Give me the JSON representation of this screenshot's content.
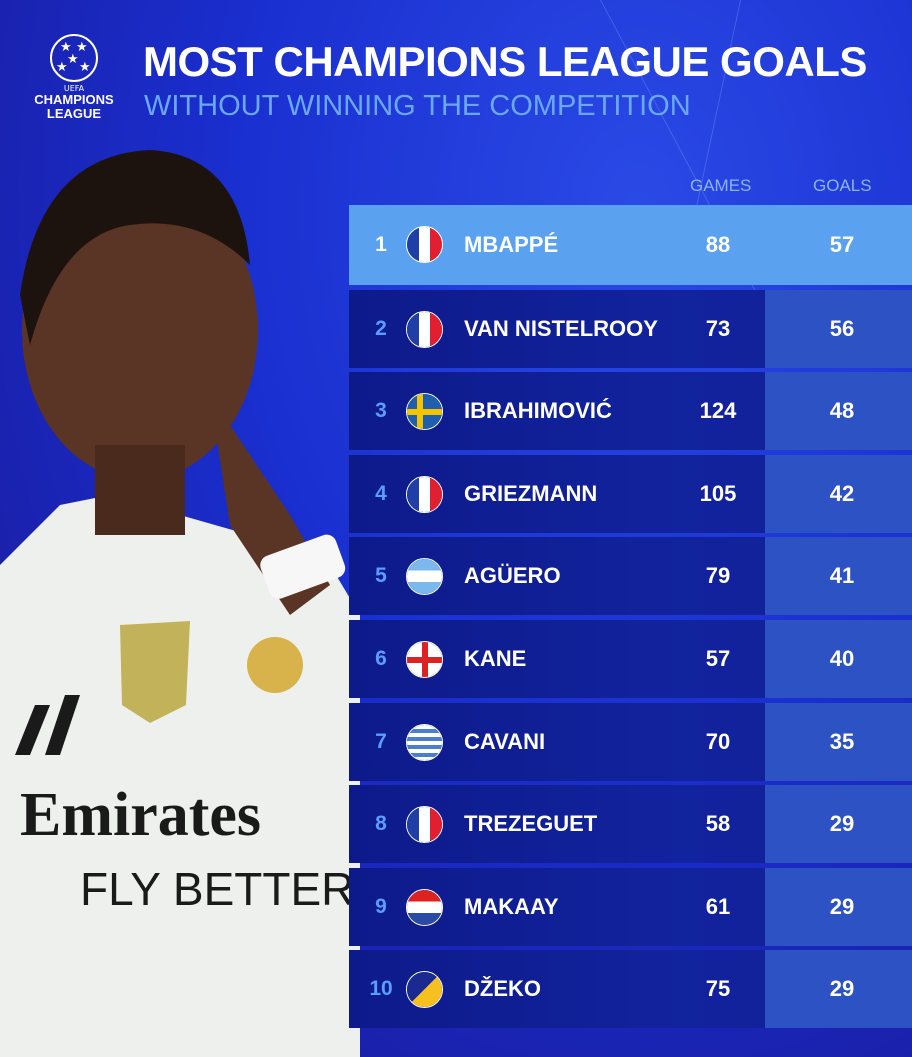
{
  "logo": {
    "uefa": "UEFA",
    "line1": "CHAMPIONS",
    "line2": "LEAGUE"
  },
  "title": "MOST CHAMPIONS LEAGUE GOALS",
  "subtitle": "WITHOUT WINNING THE COMPETITION",
  "columns": {
    "games": "GAMES",
    "goals": "GOALS"
  },
  "colors": {
    "highlight": "#5aa2ef",
    "row": "#12239e",
    "goals_column": "#2d52c4",
    "subtitle": "#6aa8ff"
  },
  "rows": [
    {
      "rank": "1",
      "flag": "france",
      "name": "MBAPPÉ",
      "games": "88",
      "goals": "57"
    },
    {
      "rank": "2",
      "flag": "netherlands-france",
      "name": "VAN NISTELROOY",
      "games": "73",
      "goals": "56"
    },
    {
      "rank": "3",
      "flag": "sweden",
      "name": "IBRAHIMOVIĆ",
      "games": "124",
      "goals": "48"
    },
    {
      "rank": "4",
      "flag": "france",
      "name": "GRIEZMANN",
      "games": "105",
      "goals": "42"
    },
    {
      "rank": "5",
      "flag": "argentina",
      "name": "AGÜERO",
      "games": "79",
      "goals": "41"
    },
    {
      "rank": "6",
      "flag": "england",
      "name": "KANE",
      "games": "57",
      "goals": "40"
    },
    {
      "rank": "7",
      "flag": "uruguay",
      "name": "CAVANI",
      "games": "70",
      "goals": "35"
    },
    {
      "rank": "8",
      "flag": "france",
      "name": "TREZEGUET",
      "games": "58",
      "goals": "29"
    },
    {
      "rank": "9",
      "flag": "netherlands",
      "name": "MAKAAY",
      "games": "61",
      "goals": "29"
    },
    {
      "rank": "10",
      "flag": "bosnia",
      "name": "DŽEKO",
      "games": "75",
      "goals": "29"
    }
  ],
  "photo": {
    "shirt_text1": "Emirates",
    "shirt_text2": "FLY BETTER"
  }
}
